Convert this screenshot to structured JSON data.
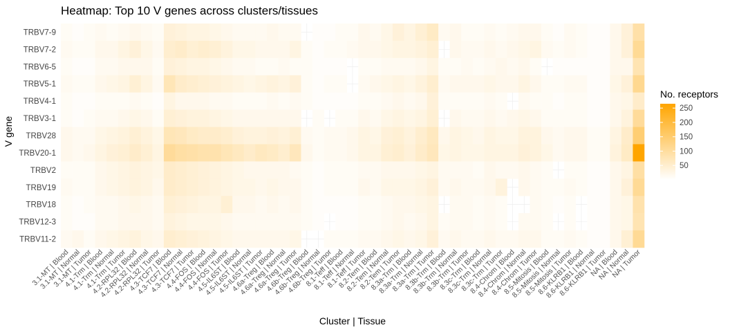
{
  "chart_data": {
    "type": "heatmap",
    "title": "Heatmap: Top 10 V genes across clusters/tissues",
    "xlabel": "Cluster | Tissue",
    "ylabel": "V gene",
    "legend": {
      "title": "No. receptors",
      "ticks": [
        50,
        100,
        150,
        200,
        250
      ],
      "range": [
        0,
        265
      ],
      "low_color": "#ffffff",
      "high_color": "#ffa500",
      "placement": "right"
    },
    "grid": true,
    "y_categories": [
      "TRBV7-9",
      "TRBV7-2",
      "TRBV6-5",
      "TRBV5-1",
      "TRBV4-1",
      "TRBV3-1",
      "TRBV28",
      "TRBV20-1",
      "TRBV2",
      "TRBV19",
      "TRBV18",
      "TRBV12-3",
      "TRBV11-2"
    ],
    "x_categories": [
      "3.1-MT | Blood",
      "3.1-MT | Normal",
      "3.1-MT | Tumor",
      "4.1-Trm | Blood",
      "4.1-Trm | Normal",
      "4.1-Trm | Tumor",
      "4.2-RPL32 | Blood",
      "4.2-RPL32 | Normal",
      "4.2-RPL32 | Tumor",
      "4.3-TCF7 | Blood",
      "4.3-TCF7 | Normal",
      "4.3-TCF7 | Tumor",
      "4.4-FOS | Blood",
      "4.4-FOS | Normal",
      "4.4-FOS | Tumor",
      "4.5-IL6ST | Blood",
      "4.5-IL6ST | Normal",
      "4.5-IL6ST | Tumor",
      "4.6a-Treg | Blood",
      "4.6a-Treg | Normal",
      "4.6a-Treg | Tumor",
      "4.6b-Treg | Blood",
      "4.6b-Treg | Normal",
      "4.6b-Treg | Tumor",
      "8.1-Teff | Blood",
      "8.1-Teff | Normal",
      "8.1-Teff | Tumor",
      "8.2-Tem | Blood",
      "8.2-Tem | Normal",
      "8.2-Tem | Tumor",
      "8.3a-Trm | Blood",
      "8.3a-Trm | Normal",
      "8.3a-Trm | Tumor",
      "8.3b-Trm | Blood",
      "8.3b-Trm | Normal",
      "8.3b-Trm | Tumor",
      "8.3c-Trm | Blood",
      "8.3c-Trm | Normal",
      "8.3c-Trm | Tumor",
      "8.4-Chrom | Blood",
      "8.4-Chrom | Normal",
      "8.4-Chrom | Tumor",
      "8.5-Mitosis | Blood",
      "8.5-Mitosis | Normal",
      "8.5-Mitosis | Tumor",
      "8.6-KLRB1 | Blood",
      "8.6-KLRB1 | Normal",
      "8.6-KLRB1 | Tumor",
      "NA | Blood",
      "NA | Normal",
      "NA | Tumor"
    ],
    "values": [
      [
        10,
        5,
        10,
        15,
        10,
        15,
        20,
        15,
        10,
        40,
        35,
        30,
        30,
        25,
        20,
        15,
        15,
        15,
        20,
        15,
        15,
        null,
        5,
        5,
        10,
        10,
        20,
        15,
        25,
        40,
        30,
        45,
        60,
        15,
        20,
        10,
        10,
        15,
        10,
        15,
        20,
        20,
        10,
        5,
        15,
        10,
        5,
        5,
        20,
        40,
        90
      ],
      [
        15,
        10,
        10,
        20,
        20,
        30,
        40,
        25,
        15,
        50,
        55,
        45,
        50,
        45,
        35,
        25,
        25,
        20,
        20,
        20,
        30,
        10,
        5,
        10,
        10,
        15,
        20,
        20,
        25,
        30,
        30,
        35,
        45,
        null,
        20,
        15,
        15,
        20,
        15,
        20,
        25,
        30,
        15,
        10,
        15,
        10,
        5,
        5,
        20,
        40,
        110
      ],
      [
        10,
        5,
        5,
        15,
        15,
        20,
        20,
        20,
        10,
        40,
        35,
        30,
        30,
        25,
        20,
        15,
        15,
        10,
        10,
        15,
        10,
        10,
        5,
        5,
        5,
        null,
        10,
        10,
        15,
        15,
        15,
        20,
        30,
        10,
        10,
        15,
        10,
        15,
        20,
        15,
        20,
        10,
        null,
        5,
        5,
        5,
        5,
        5,
        20,
        20,
        80
      ],
      [
        15,
        10,
        10,
        20,
        25,
        30,
        45,
        30,
        15,
        75,
        55,
        50,
        45,
        40,
        35,
        30,
        25,
        30,
        35,
        30,
        40,
        10,
        5,
        10,
        10,
        null,
        15,
        20,
        25,
        30,
        25,
        35,
        50,
        15,
        20,
        20,
        20,
        25,
        20,
        20,
        30,
        20,
        10,
        10,
        15,
        15,
        5,
        5,
        25,
        40,
        115
      ],
      [
        10,
        5,
        5,
        10,
        10,
        10,
        15,
        10,
        5,
        30,
        20,
        20,
        20,
        15,
        15,
        10,
        10,
        10,
        15,
        10,
        15,
        10,
        5,
        5,
        5,
        5,
        10,
        10,
        15,
        20,
        15,
        20,
        40,
        10,
        10,
        10,
        10,
        15,
        10,
        null,
        15,
        10,
        10,
        5,
        10,
        10,
        5,
        5,
        20,
        25,
        55
      ],
      [
        10,
        5,
        10,
        15,
        15,
        20,
        25,
        20,
        10,
        45,
        40,
        35,
        35,
        30,
        25,
        20,
        20,
        20,
        20,
        20,
        20,
        null,
        10,
        null,
        10,
        10,
        20,
        15,
        25,
        30,
        25,
        30,
        45,
        null,
        20,
        15,
        15,
        20,
        15,
        20,
        25,
        20,
        10,
        10,
        10,
        10,
        5,
        5,
        20,
        35,
        105
      ],
      [
        20,
        15,
        15,
        25,
        30,
        35,
        45,
        35,
        25,
        75,
        70,
        60,
        55,
        55,
        50,
        40,
        35,
        35,
        40,
        35,
        45,
        15,
        10,
        15,
        15,
        20,
        30,
        25,
        40,
        45,
        35,
        50,
        65,
        20,
        30,
        25,
        20,
        30,
        25,
        25,
        35,
        35,
        20,
        15,
        20,
        20,
        10,
        10,
        30,
        55,
        145
      ],
      [
        20,
        15,
        20,
        30,
        40,
        45,
        55,
        45,
        30,
        105,
        95,
        90,
        85,
        85,
        75,
        65,
        55,
        65,
        60,
        50,
        70,
        20,
        10,
        15,
        15,
        20,
        30,
        30,
        45,
        50,
        40,
        55,
        70,
        25,
        30,
        25,
        25,
        30,
        30,
        30,
        40,
        35,
        25,
        15,
        20,
        20,
        10,
        10,
        35,
        60,
        265
      ],
      [
        10,
        10,
        10,
        20,
        25,
        30,
        35,
        30,
        25,
        55,
        50,
        45,
        40,
        35,
        30,
        25,
        20,
        20,
        20,
        20,
        15,
        10,
        5,
        10,
        10,
        10,
        15,
        15,
        20,
        20,
        20,
        25,
        30,
        15,
        15,
        15,
        10,
        20,
        15,
        15,
        20,
        15,
        10,
        null,
        10,
        10,
        5,
        5,
        20,
        30,
        95
      ],
      [
        15,
        10,
        10,
        20,
        25,
        30,
        35,
        30,
        20,
        55,
        50,
        45,
        40,
        35,
        30,
        25,
        25,
        20,
        25,
        20,
        20,
        10,
        5,
        10,
        10,
        10,
        20,
        15,
        25,
        25,
        25,
        30,
        40,
        15,
        20,
        15,
        15,
        20,
        35,
        null,
        20,
        15,
        10,
        10,
        15,
        10,
        5,
        5,
        20,
        40,
        110
      ],
      [
        10,
        5,
        10,
        15,
        15,
        20,
        25,
        20,
        15,
        45,
        40,
        35,
        30,
        30,
        45,
        20,
        20,
        15,
        20,
        15,
        20,
        10,
        5,
        5,
        5,
        5,
        10,
        10,
        15,
        20,
        20,
        25,
        30,
        null,
        15,
        15,
        10,
        15,
        10,
        null,
        null,
        15,
        10,
        5,
        10,
        null,
        5,
        5,
        20,
        25,
        85
      ],
      [
        10,
        5,
        5,
        15,
        15,
        20,
        20,
        20,
        15,
        35,
        30,
        25,
        25,
        25,
        20,
        15,
        15,
        15,
        15,
        15,
        15,
        10,
        5,
        null,
        5,
        5,
        10,
        10,
        15,
        20,
        15,
        20,
        30,
        10,
        15,
        15,
        10,
        15,
        10,
        null,
        15,
        15,
        10,
        null,
        10,
        null,
        5,
        5,
        20,
        25,
        80
      ],
      [
        15,
        20,
        10,
        20,
        25,
        30,
        35,
        25,
        20,
        50,
        45,
        40,
        35,
        30,
        25,
        20,
        20,
        20,
        20,
        20,
        25,
        null,
        null,
        10,
        10,
        10,
        15,
        15,
        20,
        25,
        20,
        25,
        40,
        15,
        20,
        15,
        15,
        20,
        15,
        15,
        20,
        20,
        10,
        10,
        15,
        10,
        5,
        5,
        20,
        45,
        110
      ]
    ]
  }
}
